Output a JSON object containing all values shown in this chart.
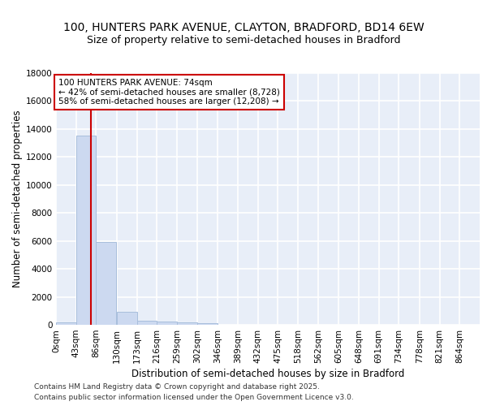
{
  "title_line1": "100, HUNTERS PARK AVENUE, CLAYTON, BRADFORD, BD14 6EW",
  "title_line2": "Size of property relative to semi-detached houses in Bradford",
  "xlabel": "Distribution of semi-detached houses by size in Bradford",
  "ylabel": "Number of semi-detached properties",
  "bin_labels": [
    "0sqm",
    "43sqm",
    "86sqm",
    "130sqm",
    "173sqm",
    "216sqm",
    "259sqm",
    "302sqm",
    "346sqm",
    "389sqm",
    "432sqm",
    "475sqm",
    "518sqm",
    "562sqm",
    "605sqm",
    "648sqm",
    "691sqm",
    "734sqm",
    "778sqm",
    "821sqm",
    "864sqm"
  ],
  "bin_edges": [
    0,
    43,
    86,
    130,
    173,
    216,
    259,
    302,
    346,
    389,
    432,
    475,
    518,
    562,
    605,
    648,
    691,
    734,
    778,
    821,
    864
  ],
  "bar_heights": [
    200,
    13500,
    5900,
    950,
    300,
    250,
    150,
    100,
    0,
    0,
    0,
    0,
    0,
    0,
    0,
    0,
    0,
    0,
    0,
    0
  ],
  "bar_color": "#ccd9f0",
  "bar_edgecolor": "#a8bedc",
  "background_color": "#e8eef8",
  "grid_color": "#ffffff",
  "property_size": 74,
  "vline_color": "#cc0000",
  "annotation_text": "100 HUNTERS PARK AVENUE: 74sqm\n← 42% of semi-detached houses are smaller (8,728)\n58% of semi-detached houses are larger (12,208) →",
  "annotation_box_color": "#ffffff",
  "annotation_border_color": "#cc0000",
  "ylim": [
    0,
    18000
  ],
  "yticks": [
    0,
    2000,
    4000,
    6000,
    8000,
    10000,
    12000,
    14000,
    16000,
    18000
  ],
  "footer_line1": "Contains HM Land Registry data © Crown copyright and database right 2025.",
  "footer_line2": "Contains public sector information licensed under the Open Government Licence v3.0.",
  "title_fontsize": 10,
  "subtitle_fontsize": 9,
  "axis_label_fontsize": 8.5,
  "tick_fontsize": 7.5,
  "annotation_fontsize": 7.5,
  "footer_fontsize": 6.5
}
